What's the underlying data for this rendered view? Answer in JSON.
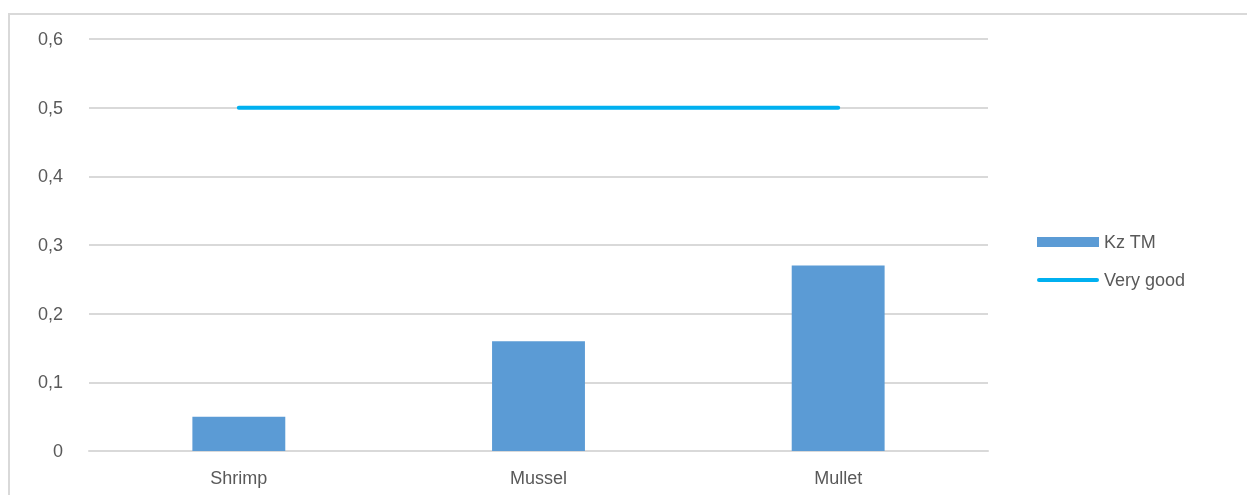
{
  "chart_data": {
    "type": "bar",
    "categories": [
      "Shrimp",
      "Mussel",
      "Mullet"
    ],
    "series": [
      {
        "name": "Kz TM",
        "color": "#5b9bd5",
        "values": [
          0.05,
          0.16,
          0.27
        ]
      },
      {
        "name": "Very good",
        "type": "line",
        "color": "#00b0f0",
        "values": [
          0.5,
          0.5,
          0.5
        ],
        "marker": "none",
        "line_style": "solid"
      }
    ],
    "ylim": [
      0,
      0.6
    ],
    "yticks": [
      0,
      {
        "value": 0.1,
        "label": "0,1"
      },
      {
        "value": 0.2,
        "label": "0,2"
      },
      {
        "value": 0.3,
        "label": "0,3"
      },
      {
        "value": 0.4,
        "label": "0,4"
      },
      {
        "value": 0.5,
        "label": "0,5"
      },
      {
        "value": 0.6,
        "label": "0,6"
      }
    ],
    "grid": "y",
    "legend": "right"
  }
}
